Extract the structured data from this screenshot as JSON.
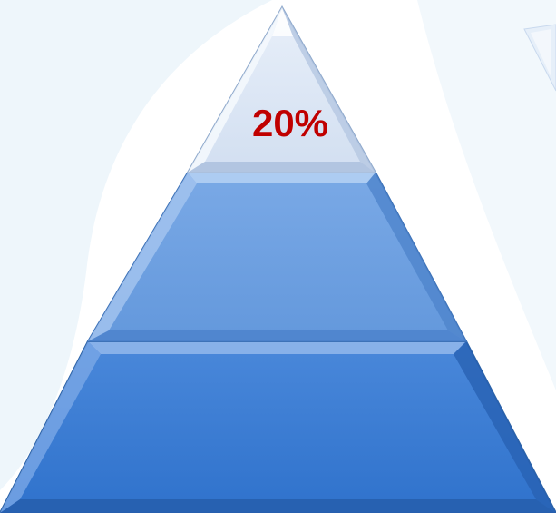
{
  "pyramid": {
    "top_label": "20%",
    "label_color": "#c00000",
    "tiers": [
      {
        "name": "top",
        "fill": "#dce6f5"
      },
      {
        "name": "middle",
        "fill": "#6fa0e0"
      },
      {
        "name": "bottom",
        "fill": "#3a7cd4"
      }
    ],
    "bevel_color": "#ffffff",
    "outline_color": "#2b62a8"
  },
  "background_shape_color": "#eaf4fb",
  "partial_shape_color": "#e3eef9"
}
